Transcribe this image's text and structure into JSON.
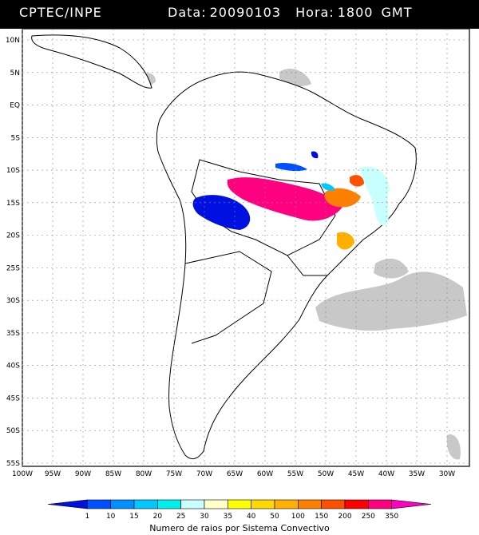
{
  "header": {
    "source": "CPTEC/INPE",
    "date_label": "Data:",
    "date_value": "20090103",
    "hour_label": "Hora:",
    "hour_value": "1800",
    "timezone": "GMT"
  },
  "map": {
    "lat_labels": [
      "10N",
      "5N",
      "EQ",
      "5S",
      "10S",
      "15S",
      "20S",
      "25S",
      "30S",
      "35S",
      "40S",
      "45S",
      "50S",
      "55S"
    ],
    "lon_labels": [
      "100W",
      "95W",
      "90W",
      "85W",
      "80W",
      "75W",
      "70W",
      "65W",
      "60W",
      "55W",
      "50W",
      "45W",
      "40W",
      "35W",
      "30W"
    ],
    "lat_range": [
      10,
      -55
    ],
    "lon_range": [
      -100,
      -30
    ]
  },
  "legend": {
    "title": "Numero de raios por Sistema Convectivo",
    "values": [
      "1",
      "10",
      "15",
      "20",
      "25",
      "30",
      "35",
      "40",
      "50",
      "100",
      "150",
      "200",
      "250",
      "350"
    ],
    "colors": [
      "#0010e0",
      "#0050ff",
      "#0090ff",
      "#00c8ff",
      "#00f0f0",
      "#c8ffff",
      "#ffffc8",
      "#ffff00",
      "#ffd800",
      "#ffb000",
      "#ff8000",
      "#ff5000",
      "#ff0000",
      "#ff0080",
      "#ff00c0"
    ]
  },
  "colors": {
    "cloud": "#c8c8c8",
    "land": "#ffffff",
    "border": "#000000"
  }
}
